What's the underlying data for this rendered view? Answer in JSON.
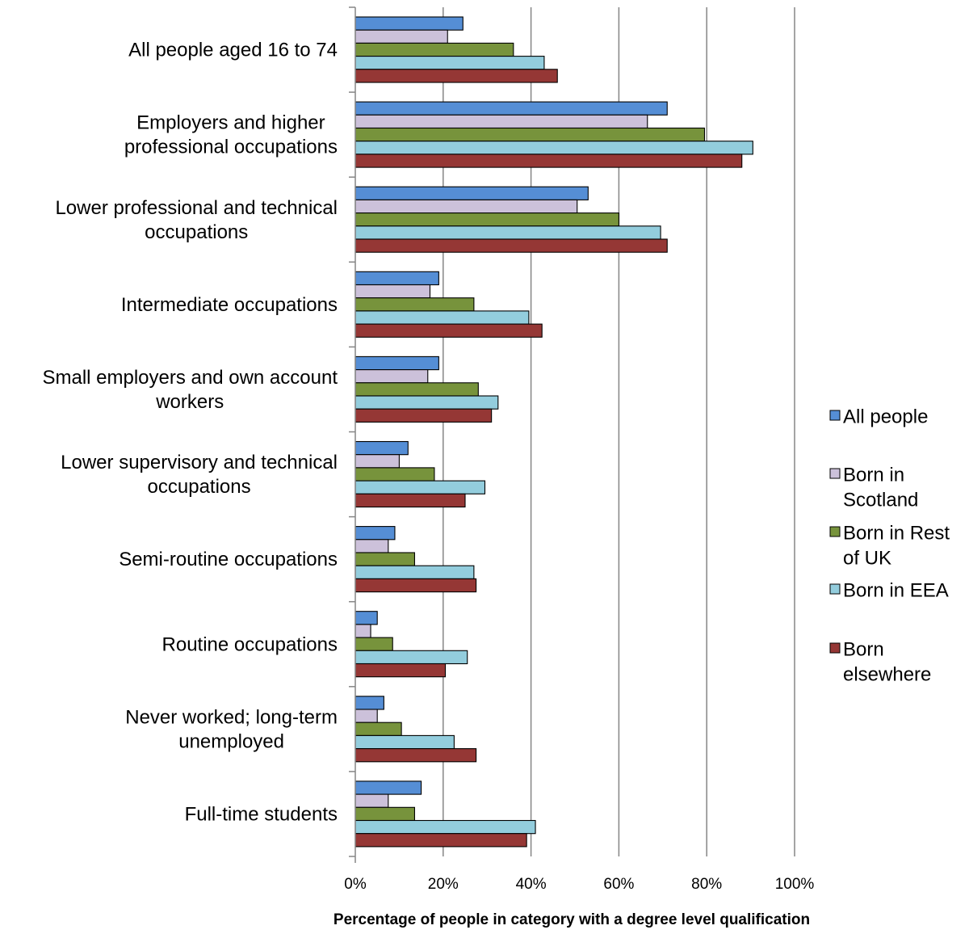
{
  "chart_data": {
    "type": "bar",
    "orientation": "horizontal",
    "title": "",
    "xlabel": "Percentage of people in category with a degree level qualification",
    "ylabel": "",
    "xlim": [
      0,
      100
    ],
    "x_ticks": [
      "0%",
      "20%",
      "40%",
      "60%",
      "80%",
      "100%"
    ],
    "grid": "vertical major gridlines",
    "legend_position": "right",
    "categories": [
      "All people aged 16 to 74",
      "Employers and higher professional occupations",
      "Lower professional and technical occupations",
      "Intermediate occupations",
      "Small employers and own account workers",
      "Lower supervisory and technical occupations",
      "Semi-routine occupations",
      "Routine occupations",
      "Never worked; long-term unemployed",
      "Full-time students"
    ],
    "category_label_lines": [
      [
        "All people aged 16 to 74"
      ],
      [
        "Employers and higher",
        "professional occupations"
      ],
      [
        "Lower professional and technical",
        "occupations"
      ],
      [
        "Intermediate occupations"
      ],
      [
        "Small employers and own account",
        "workers"
      ],
      [
        "Lower supervisory and technical",
        "occupations"
      ],
      [
        "Semi-routine occupations"
      ],
      [
        "Routine occupations"
      ],
      [
        "Never worked; long-term",
        "unemployed"
      ],
      [
        "Full-time students"
      ]
    ],
    "series": [
      {
        "name": "All people",
        "legend_lines": [
          "All people"
        ],
        "color": "#558ED5",
        "values": [
          24.5,
          71,
          53,
          19,
          19,
          12,
          9,
          5,
          6.5,
          15
        ]
      },
      {
        "name": "Born in Scotland",
        "legend_lines": [
          "Born in",
          "Scotland"
        ],
        "color": "#CCC1DA",
        "values": [
          21,
          66.5,
          50.5,
          17,
          16.5,
          10,
          7.5,
          3.5,
          5,
          7.5
        ]
      },
      {
        "name": "Born in Rest of UK",
        "legend_lines": [
          "Born in Rest",
          "of UK"
        ],
        "color": "#77933C",
        "values": [
          36,
          79.5,
          60,
          27,
          28,
          18,
          13.5,
          8.5,
          10.5,
          13.5
        ]
      },
      {
        "name": "Born in EEA",
        "legend_lines": [
          "Born in EEA"
        ],
        "color": "#93CDDD",
        "values": [
          43,
          90.5,
          69.5,
          39.5,
          32.5,
          29.5,
          27,
          25.5,
          22.5,
          41
        ]
      },
      {
        "name": "Born elsewhere",
        "legend_lines": [
          "Born",
          "elsewhere"
        ],
        "color": "#953735",
        "values": [
          46,
          88,
          71,
          42.5,
          31,
          25,
          27.5,
          20.5,
          27.5,
          39
        ]
      }
    ]
  }
}
